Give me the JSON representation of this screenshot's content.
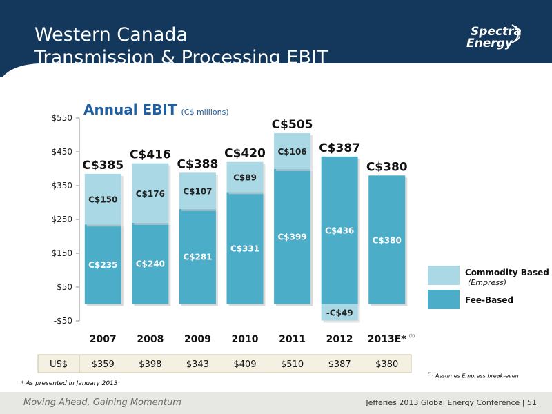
{
  "header": {
    "title_line1": "Western Canada",
    "title_line2": "Transmission & Processing EBIT",
    "logo_line1": "Spectra",
    "logo_line2": "Energy"
  },
  "chart_data": {
    "type": "bar",
    "stacked": true,
    "title": "Annual EBIT",
    "subtitle": "(C$ millions)",
    "categories": [
      "2007",
      "2008",
      "2009",
      "2010",
      "2011",
      "2012",
      "2013E*"
    ],
    "category_superscripts": [
      "",
      "",
      "",
      "",
      "",
      "",
      "(1)"
    ],
    "series": [
      {
        "name": "Fee-Based",
        "values": [
          235,
          240,
          281,
          331,
          399,
          436,
          380
        ],
        "labels": [
          "C$235",
          "C$240",
          "C$281",
          "C$331",
          "C$399",
          "C$436",
          "C$380"
        ],
        "color": "#4badc8"
      },
      {
        "name": "Commodity Based",
        "name_sub": "(Empress)",
        "values": [
          150,
          176,
          107,
          89,
          106,
          -49,
          0
        ],
        "labels": [
          "C$150",
          "C$176",
          "C$107",
          "C$89",
          "C$106",
          "-C$49",
          ""
        ],
        "color": "#aad9e5"
      }
    ],
    "totals": [
      "C$385",
      "C$416",
      "C$388",
      "C$420",
      "C$505",
      "C$387",
      "C$380"
    ],
    "ylim": [
      -50,
      550
    ],
    "yticks": [
      -50,
      50,
      150,
      250,
      350,
      450,
      550
    ],
    "ytick_labels": [
      "-$50",
      "$50",
      "$150",
      "$250",
      "$350",
      "$450",
      "$550"
    ],
    "grid": false,
    "legend_position": "right",
    "usd_row": {
      "label": "US$",
      "values": [
        "$359",
        "$398",
        "$343",
        "$409",
        "$510",
        "$387",
        "$380"
      ]
    }
  },
  "notes": {
    "as_presented": "* As presented in January 2013",
    "footnote_marker": "(1)",
    "footnote_text": "Assumes Empress break-even"
  },
  "footer": {
    "left": "Moving Ahead, Gaining Momentum",
    "right": "Jefferies 2013 Global Energy Conference | 51"
  },
  "colors": {
    "header_bg": "#13385c",
    "title_accent": "#1f5fa0",
    "fee_based": "#4badc8",
    "commodity": "#aad9e5",
    "footer_bg": "#e7e7e3"
  }
}
